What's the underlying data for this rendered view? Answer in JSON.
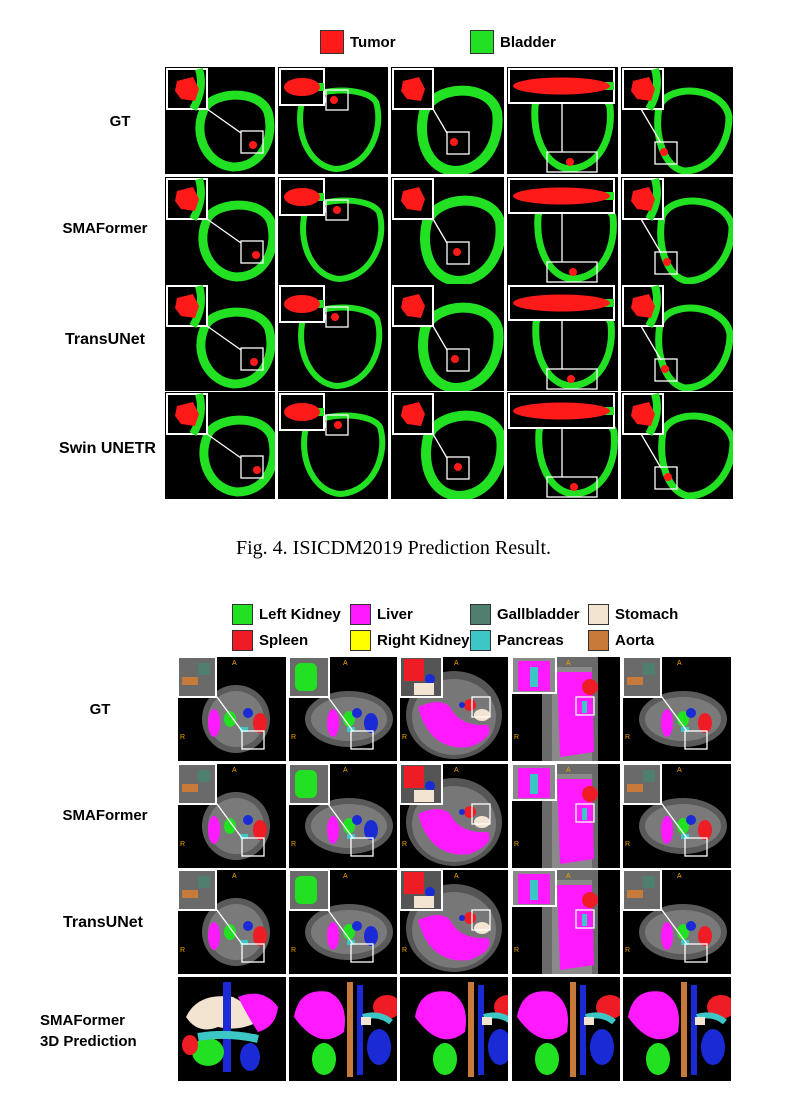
{
  "figure4": {
    "legend": [
      {
        "label": "Tumor",
        "color": "#ff1a1a"
      },
      {
        "label": "Bladder",
        "color": "#22e022"
      }
    ],
    "rows": [
      "GT",
      "SMAFormer",
      "TransUNet",
      "Swin UNETR"
    ],
    "caption": "Fig. 4.  ISICDM2019 Prediction Result."
  },
  "figure5": {
    "legend": [
      {
        "label": "Left Kidney",
        "color": "#22e022"
      },
      {
        "label": "Liver",
        "color": "#ff1aff"
      },
      {
        "label": "Gallbladder",
        "color": "#4f7f6e"
      },
      {
        "label": "Stomach",
        "color": "#f2e4d0"
      },
      {
        "label": "Spleen",
        "color": "#ee1c24"
      },
      {
        "label": "Right Kidney",
        "color": "#ffff00"
      },
      {
        "label": "Pancreas",
        "color": "#3dc6c6"
      },
      {
        "label": "Aorta",
        "color": "#c87a3a"
      }
    ],
    "rows": [
      "GT",
      "SMAFormer",
      "TransUNet"
    ],
    "row3d_line1": "SMAFormer",
    "row3d_line2": "3D Prediction"
  }
}
